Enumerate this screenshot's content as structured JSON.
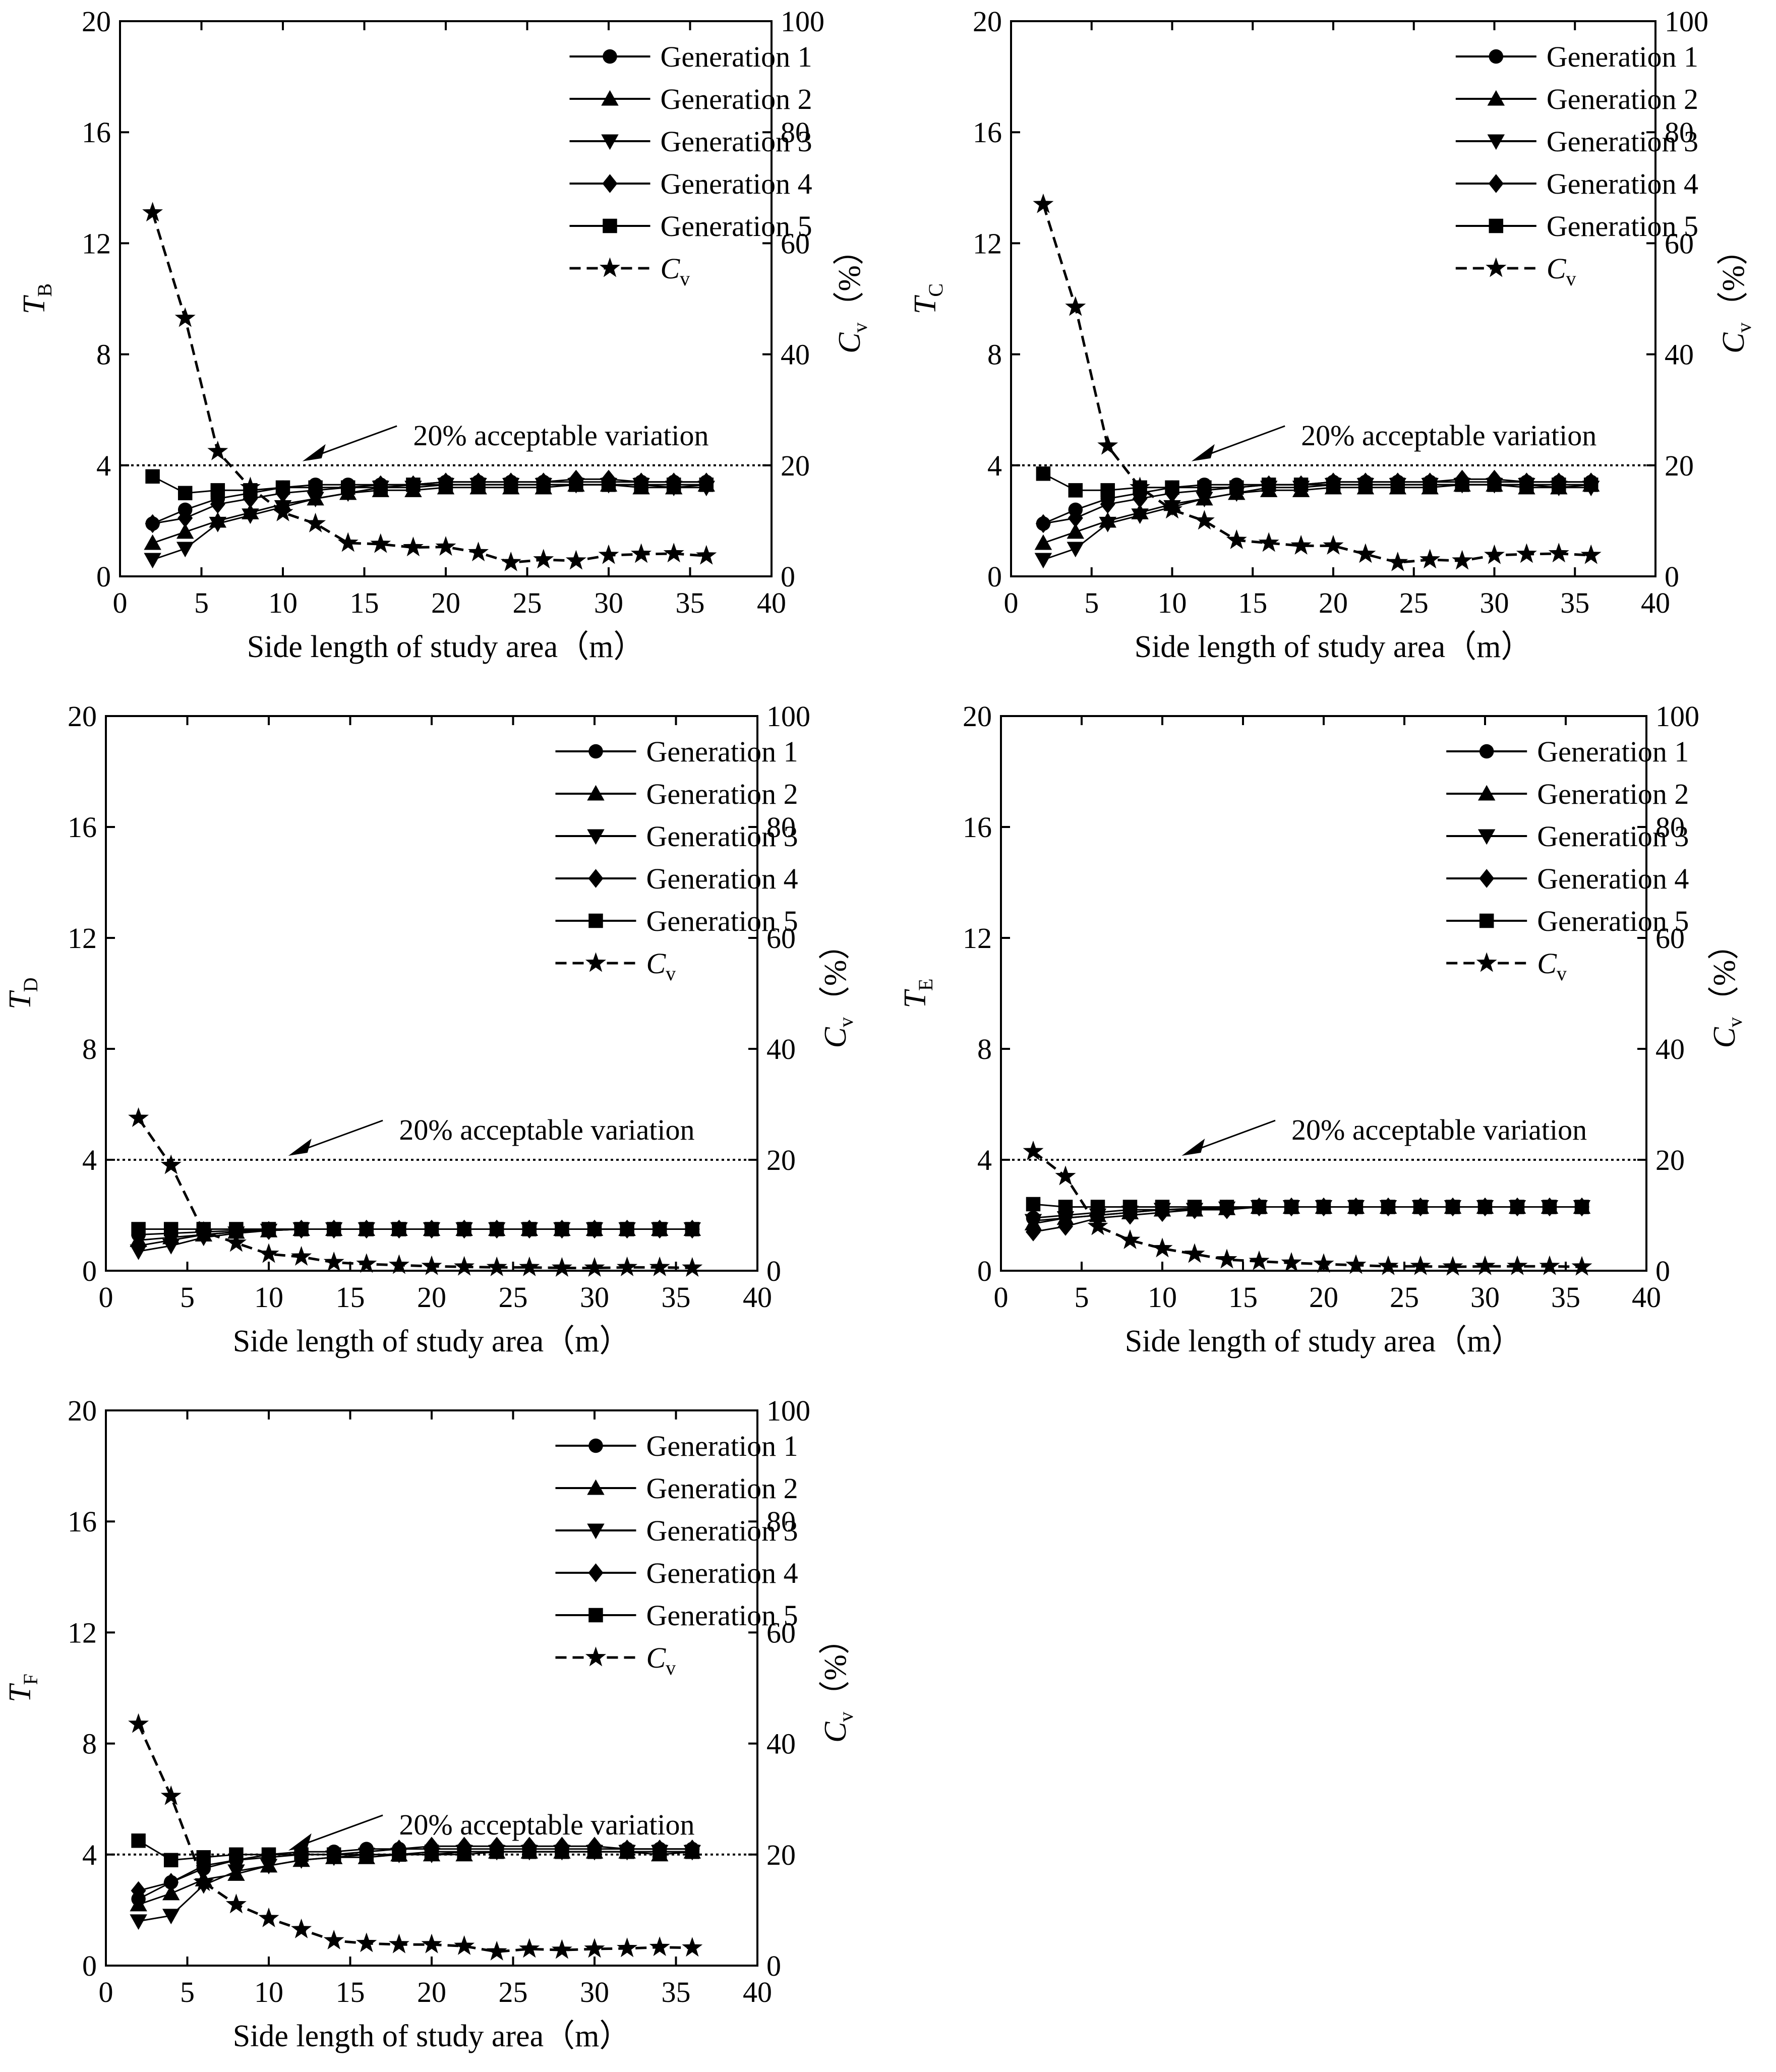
{
  "figure": {
    "x_axis_label": "Side length of study area（m）",
    "right_axis_label": "C",
    "right_axis_subscript": "v",
    "right_axis_unit": "（%）",
    "left_axis_symbol": "T",
    "threshold_annotation": "20%  acceptable variation",
    "legend_entries": [
      "Generation 1",
      "Generation 2",
      "Generation 3",
      "Generation 4",
      "Generation 5"
    ],
    "cv_legend_label": "C",
    "cv_legend_subscript": "v"
  },
  "chart_data": [
    {
      "type": "line",
      "panel": "B",
      "ylabel": "T",
      "ylabel_subscript": "B",
      "x_axis": {
        "label": "Side length of study area（m）",
        "range": [
          0,
          40
        ],
        "ticks": [
          0,
          5,
          10,
          15,
          20,
          25,
          30,
          35,
          40
        ]
      },
      "y_left": {
        "range": [
          0,
          20
        ],
        "ticks": [
          0,
          4,
          8,
          12,
          16,
          20
        ]
      },
      "y_right": {
        "label": "Cv（%）",
        "range": [
          0,
          100
        ],
        "ticks": [
          0,
          20,
          40,
          60,
          80,
          100
        ]
      },
      "threshold": {
        "value": 20,
        "axis": "right",
        "label": "20%  acceptable variation"
      },
      "x": [
        2,
        4,
        6,
        8,
        10,
        12,
        14,
        16,
        18,
        20,
        22,
        24,
        26,
        28,
        30,
        32,
        34,
        36
      ],
      "series": [
        {
          "name": "Generation 1",
          "marker": "circle",
          "values": [
            1.9,
            2.4,
            2.8,
            3.0,
            3.2,
            3.3,
            3.3,
            3.3,
            3.3,
            3.4,
            3.4,
            3.4,
            3.4,
            3.4,
            3.4,
            3.4,
            3.4,
            3.4
          ]
        },
        {
          "name": "Generation 2",
          "marker": "triangle-up",
          "values": [
            1.2,
            1.6,
            2.0,
            2.3,
            2.6,
            2.8,
            3.0,
            3.1,
            3.1,
            3.2,
            3.2,
            3.2,
            3.2,
            3.3,
            3.3,
            3.2,
            3.2,
            3.3
          ]
        },
        {
          "name": "Generation 3",
          "marker": "triangle-down",
          "values": [
            0.6,
            1.0,
            1.9,
            2.2,
            2.5,
            2.8,
            3.0,
            3.2,
            3.2,
            3.3,
            3.3,
            3.3,
            3.3,
            3.3,
            3.3,
            3.3,
            3.2,
            3.2
          ]
        },
        {
          "name": "Generation 4",
          "marker": "diamond",
          "values": [
            1.9,
            2.1,
            2.6,
            2.8,
            3.0,
            3.1,
            3.2,
            3.3,
            3.3,
            3.4,
            3.4,
            3.4,
            3.4,
            3.5,
            3.5,
            3.4,
            3.4,
            3.4
          ]
        },
        {
          "name": "Generation 5",
          "marker": "square",
          "values": [
            3.6,
            3.0,
            3.1,
            3.1,
            3.2,
            3.2,
            3.2,
            3.2,
            3.3,
            3.3,
            3.3,
            3.3,
            3.3,
            3.3,
            3.3,
            3.3,
            3.3,
            3.3
          ]
        },
        {
          "name": "Cv",
          "marker": "star",
          "dashed": true,
          "axis": "right",
          "values": [
            65.5,
            46.5,
            22.5,
            16.0,
            11.5,
            9.5,
            6.0,
            5.8,
            5.2,
            5.3,
            4.3,
            2.5,
            3.0,
            2.8,
            3.8,
            4.0,
            4.1,
            3.7
          ]
        }
      ]
    },
    {
      "type": "line",
      "panel": "C",
      "ylabel": "T",
      "ylabel_subscript": "C",
      "x_axis": {
        "label": "Side length of study area（m）",
        "range": [
          0,
          40
        ],
        "ticks": [
          0,
          5,
          10,
          15,
          20,
          25,
          30,
          35,
          40
        ]
      },
      "y_left": {
        "range": [
          0,
          20
        ],
        "ticks": [
          0,
          4,
          8,
          12,
          16,
          20
        ]
      },
      "y_right": {
        "label": "Cv（%）",
        "range": [
          0,
          100
        ],
        "ticks": [
          0,
          20,
          40,
          60,
          80,
          100
        ]
      },
      "threshold": {
        "value": 20,
        "axis": "right",
        "label": "20%  acceptable variation"
      },
      "x": [
        2,
        4,
        6,
        8,
        10,
        12,
        14,
        16,
        18,
        20,
        22,
        24,
        26,
        28,
        30,
        32,
        34,
        36
      ],
      "series": [
        {
          "name": "Generation 1",
          "marker": "circle",
          "values": [
            1.9,
            2.4,
            2.8,
            3.0,
            3.2,
            3.3,
            3.3,
            3.3,
            3.3,
            3.4,
            3.4,
            3.4,
            3.4,
            3.4,
            3.4,
            3.4,
            3.4,
            3.4
          ]
        },
        {
          "name": "Generation 2",
          "marker": "triangle-up",
          "values": [
            1.2,
            1.6,
            2.0,
            2.3,
            2.6,
            2.8,
            3.0,
            3.1,
            3.1,
            3.2,
            3.2,
            3.2,
            3.2,
            3.3,
            3.3,
            3.2,
            3.2,
            3.3
          ]
        },
        {
          "name": "Generation 3",
          "marker": "triangle-down",
          "values": [
            0.6,
            1.0,
            1.9,
            2.2,
            2.5,
            2.8,
            3.0,
            3.2,
            3.2,
            3.3,
            3.3,
            3.3,
            3.3,
            3.3,
            3.3,
            3.3,
            3.2,
            3.2
          ]
        },
        {
          "name": "Generation 4",
          "marker": "diamond",
          "values": [
            1.9,
            2.1,
            2.6,
            2.8,
            3.0,
            3.1,
            3.2,
            3.3,
            3.3,
            3.4,
            3.4,
            3.4,
            3.4,
            3.5,
            3.5,
            3.4,
            3.4,
            3.4
          ]
        },
        {
          "name": "Generation 5",
          "marker": "square",
          "values": [
            3.7,
            3.1,
            3.1,
            3.2,
            3.2,
            3.2,
            3.2,
            3.3,
            3.3,
            3.3,
            3.3,
            3.3,
            3.3,
            3.3,
            3.3,
            3.3,
            3.3,
            3.3
          ]
        },
        {
          "name": "Cv",
          "marker": "star",
          "dashed": true,
          "axis": "right",
          "values": [
            67.0,
            48.5,
            23.5,
            16.0,
            12.0,
            10.0,
            6.5,
            6.0,
            5.5,
            5.5,
            4.0,
            2.5,
            3.0,
            2.8,
            3.8,
            4.0,
            4.1,
            3.8
          ]
        }
      ]
    },
    {
      "type": "line",
      "panel": "D",
      "ylabel": "T",
      "ylabel_subscript": "D",
      "x_axis": {
        "label": "Side length of study area（m）",
        "range": [
          0,
          40
        ],
        "ticks": [
          0,
          5,
          10,
          15,
          20,
          25,
          30,
          35,
          40
        ]
      },
      "y_left": {
        "range": [
          0,
          20
        ],
        "ticks": [
          0,
          4,
          8,
          12,
          16,
          20
        ]
      },
      "y_right": {
        "label": "Cv（%）",
        "range": [
          0,
          100
        ],
        "ticks": [
          0,
          20,
          40,
          60,
          80,
          100
        ]
      },
      "threshold": {
        "value": 20,
        "axis": "right",
        "label": "20%  acceptable variation"
      },
      "x": [
        2,
        4,
        6,
        8,
        10,
        12,
        14,
        16,
        18,
        20,
        22,
        24,
        26,
        28,
        30,
        32,
        34,
        36
      ],
      "series": [
        {
          "name": "Generation 1",
          "marker": "circle",
          "values": [
            1.3,
            1.35,
            1.4,
            1.45,
            1.5,
            1.5,
            1.5,
            1.5,
            1.5,
            1.5,
            1.5,
            1.5,
            1.5,
            1.5,
            1.5,
            1.5,
            1.5,
            1.5
          ]
        },
        {
          "name": "Generation 2",
          "marker": "triangle-up",
          "values": [
            1.1,
            1.2,
            1.3,
            1.4,
            1.45,
            1.5,
            1.5,
            1.5,
            1.5,
            1.5,
            1.5,
            1.5,
            1.5,
            1.5,
            1.5,
            1.5,
            1.5,
            1.5
          ]
        },
        {
          "name": "Generation 3",
          "marker": "triangle-down",
          "values": [
            0.7,
            0.9,
            1.2,
            1.35,
            1.45,
            1.5,
            1.5,
            1.5,
            1.5,
            1.5,
            1.5,
            1.5,
            1.5,
            1.5,
            1.5,
            1.5,
            1.5,
            1.5
          ]
        },
        {
          "name": "Generation 4",
          "marker": "diamond",
          "values": [
            0.9,
            1.1,
            1.3,
            1.4,
            1.45,
            1.5,
            1.5,
            1.5,
            1.5,
            1.5,
            1.5,
            1.5,
            1.5,
            1.5,
            1.5,
            1.5,
            1.5,
            1.5
          ]
        },
        {
          "name": "Generation 5",
          "marker": "square",
          "values": [
            1.5,
            1.5,
            1.5,
            1.5,
            1.5,
            1.5,
            1.5,
            1.5,
            1.5,
            1.5,
            1.5,
            1.5,
            1.5,
            1.5,
            1.5,
            1.5,
            1.5,
            1.5
          ]
        },
        {
          "name": "Cv",
          "marker": "star",
          "dashed": true,
          "axis": "right",
          "values": [
            27.5,
            19.0,
            7.0,
            5.0,
            3.0,
            2.5,
            1.5,
            1.2,
            1.0,
            0.8,
            0.7,
            0.6,
            0.6,
            0.5,
            0.5,
            0.6,
            0.6,
            0.5
          ]
        }
      ]
    },
    {
      "type": "line",
      "panel": "E",
      "ylabel": "T",
      "ylabel_subscript": "E",
      "x_axis": {
        "label": "Side length of study area（m）",
        "range": [
          0,
          40
        ],
        "ticks": [
          0,
          5,
          10,
          15,
          20,
          25,
          30,
          35,
          40
        ]
      },
      "y_left": {
        "range": [
          0,
          20
        ],
        "ticks": [
          0,
          4,
          8,
          12,
          16,
          20
        ]
      },
      "y_right": {
        "label": "Cv（%）",
        "range": [
          0,
          100
        ],
        "ticks": [
          0,
          20,
          40,
          60,
          80,
          100
        ]
      },
      "threshold": {
        "value": 20,
        "axis": "right",
        "label": "20%  acceptable variation"
      },
      "x": [
        2,
        4,
        6,
        8,
        10,
        12,
        14,
        16,
        18,
        20,
        22,
        24,
        26,
        28,
        30,
        32,
        34,
        36
      ],
      "series": [
        {
          "name": "Generation 1",
          "marker": "circle",
          "values": [
            1.9,
            2.0,
            2.1,
            2.2,
            2.2,
            2.25,
            2.25,
            2.3,
            2.3,
            2.3,
            2.3,
            2.3,
            2.3,
            2.3,
            2.3,
            2.3,
            2.3,
            2.3
          ]
        },
        {
          "name": "Generation 2",
          "marker": "triangle-up",
          "values": [
            1.7,
            1.9,
            2.0,
            2.1,
            2.2,
            2.2,
            2.25,
            2.3,
            2.3,
            2.3,
            2.3,
            2.3,
            2.3,
            2.3,
            2.3,
            2.3,
            2.3,
            2.3
          ]
        },
        {
          "name": "Generation 3",
          "marker": "triangle-down",
          "values": [
            1.8,
            1.9,
            2.0,
            2.1,
            2.2,
            2.2,
            2.25,
            2.3,
            2.3,
            2.3,
            2.3,
            2.3,
            2.3,
            2.3,
            2.3,
            2.3,
            2.3,
            2.3
          ]
        },
        {
          "name": "Generation 4",
          "marker": "diamond",
          "values": [
            1.4,
            1.6,
            1.9,
            2.0,
            2.1,
            2.2,
            2.2,
            2.3,
            2.3,
            2.3,
            2.3,
            2.3,
            2.3,
            2.3,
            2.3,
            2.3,
            2.3,
            2.3
          ]
        },
        {
          "name": "Generation 5",
          "marker": "square",
          "values": [
            2.4,
            2.3,
            2.3,
            2.3,
            2.3,
            2.3,
            2.3,
            2.3,
            2.3,
            2.3,
            2.3,
            2.3,
            2.3,
            2.3,
            2.3,
            2.3,
            2.3,
            2.3
          ]
        },
        {
          "name": "Cv",
          "marker": "star",
          "dashed": true,
          "axis": "right",
          "values": [
            21.5,
            17.0,
            8.0,
            5.5,
            4.0,
            3.0,
            2.0,
            1.7,
            1.4,
            1.2,
            1.0,
            0.8,
            0.8,
            0.7,
            0.8,
            0.8,
            0.8,
            0.7
          ]
        }
      ]
    },
    {
      "type": "line",
      "panel": "F",
      "ylabel": "T",
      "ylabel_subscript": "F",
      "x_axis": {
        "label": "Side length of study area（m）",
        "range": [
          0,
          40
        ],
        "ticks": [
          0,
          5,
          10,
          15,
          20,
          25,
          30,
          35,
          40
        ]
      },
      "y_left": {
        "range": [
          0,
          20
        ],
        "ticks": [
          0,
          4,
          8,
          12,
          16,
          20
        ]
      },
      "y_right": {
        "label": "Cv（%）",
        "range": [
          0,
          100
        ],
        "ticks": [
          0,
          20,
          40,
          60,
          80,
          100
        ]
      },
      "threshold": {
        "value": 20,
        "axis": "right",
        "label": "20%  acceptable variation"
      },
      "x": [
        2,
        4,
        6,
        8,
        10,
        12,
        14,
        16,
        18,
        20,
        22,
        24,
        26,
        28,
        30,
        32,
        34,
        36
      ],
      "series": [
        {
          "name": "Generation 1",
          "marker": "circle",
          "values": [
            2.4,
            3.0,
            3.5,
            3.8,
            4.0,
            4.1,
            4.1,
            4.2,
            4.2,
            4.2,
            4.2,
            4.2,
            4.2,
            4.2,
            4.2,
            4.2,
            4.2,
            4.2
          ]
        },
        {
          "name": "Generation 2",
          "marker": "triangle-up",
          "values": [
            2.2,
            2.6,
            3.1,
            3.3,
            3.6,
            3.8,
            3.9,
            3.9,
            4.0,
            4.0,
            4.0,
            4.1,
            4.1,
            4.1,
            4.1,
            4.1,
            4.0,
            4.1
          ]
        },
        {
          "name": "Generation 3",
          "marker": "triangle-down",
          "values": [
            1.6,
            1.8,
            2.9,
            3.4,
            3.6,
            3.8,
            3.9,
            4.0,
            4.0,
            4.0,
            4.1,
            4.1,
            4.1,
            4.1,
            4.1,
            4.1,
            4.1,
            4.1
          ]
        },
        {
          "name": "Generation 4",
          "marker": "diamond",
          "values": [
            2.7,
            3.0,
            3.6,
            3.8,
            3.9,
            4.0,
            4.0,
            4.1,
            4.2,
            4.3,
            4.3,
            4.3,
            4.3,
            4.3,
            4.3,
            4.2,
            4.2,
            4.2
          ]
        },
        {
          "name": "Generation 5",
          "marker": "square",
          "values": [
            4.5,
            3.8,
            3.9,
            4.0,
            4.0,
            4.0,
            4.0,
            4.0,
            4.0,
            4.1,
            4.1,
            4.1,
            4.1,
            4.1,
            4.1,
            4.1,
            4.1,
            4.1
          ]
        },
        {
          "name": "Cv",
          "marker": "star",
          "dashed": true,
          "axis": "right",
          "values": [
            43.5,
            30.5,
            15.0,
            11.0,
            8.5,
            6.5,
            4.5,
            4.0,
            3.8,
            3.8,
            3.5,
            2.5,
            3.0,
            2.8,
            3.0,
            3.1,
            3.3,
            3.2
          ]
        }
      ]
    }
  ]
}
